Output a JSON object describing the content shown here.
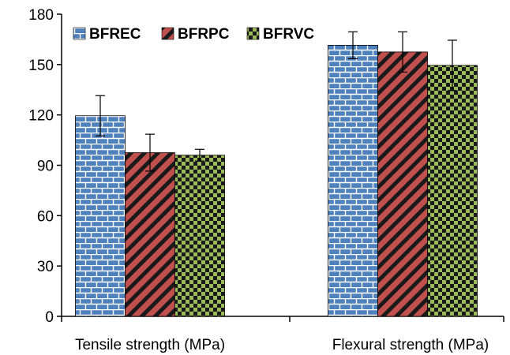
{
  "chart_data": {
    "type": "bar",
    "title": "",
    "xlabel": "",
    "ylabel": "",
    "categories": [
      "Tensile strength (MPa)",
      "Flexural strength (MPa)"
    ],
    "series": [
      {
        "name": "BFREC",
        "values": [
          119.5,
          161.5
        ],
        "errors": [
          12,
          8
        ],
        "color": "#4f81bd",
        "pattern": "brick"
      },
      {
        "name": "BFRPC",
        "values": [
          97.5,
          157.5
        ],
        "errors": [
          11,
          12
        ],
        "color": "#c0504d",
        "pattern": "diagonal-stripes"
      },
      {
        "name": "BFRVC",
        "values": [
          96,
          149.5
        ],
        "errors": [
          3.5,
          15
        ],
        "color": "#9bbb59",
        "pattern": "checkerboard"
      }
    ],
    "ylim": [
      0,
      180
    ],
    "yticks": [
      0,
      30,
      60,
      90,
      120,
      150,
      180
    ],
    "grid": false,
    "legend_position": "top-left"
  }
}
